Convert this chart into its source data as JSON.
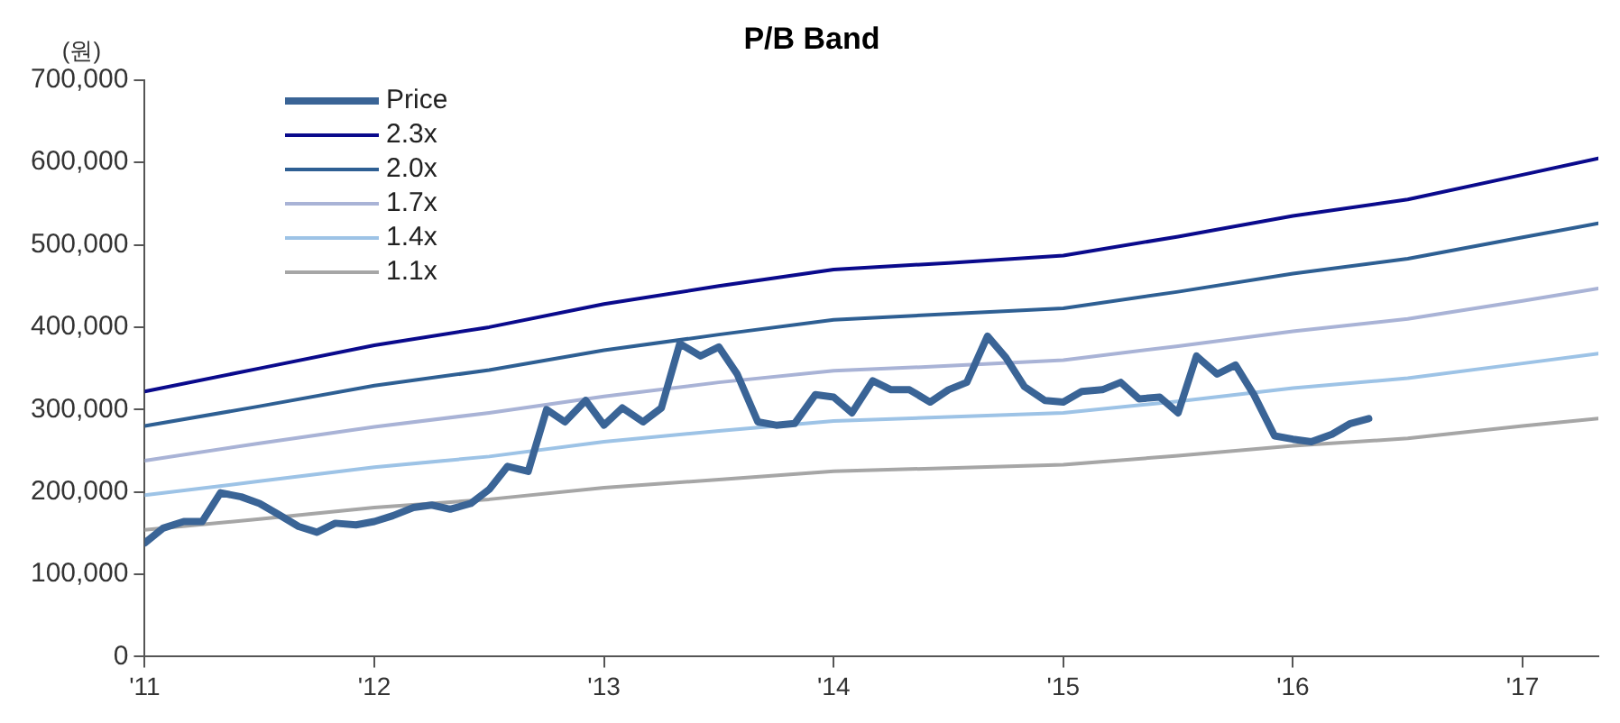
{
  "chart_data": {
    "type": "line",
    "title": "P/B Band",
    "ylabel": "(원)",
    "xlim": [
      2011,
      2017.33
    ],
    "xticks": [
      {
        "value": 2011,
        "label": "'11"
      },
      {
        "value": 2012,
        "label": "'12"
      },
      {
        "value": 2013,
        "label": "'13"
      },
      {
        "value": 2014,
        "label": "'14"
      },
      {
        "value": 2015,
        "label": "'15"
      },
      {
        "value": 2016,
        "label": "'16"
      },
      {
        "value": 2017,
        "label": "'17"
      }
    ],
    "ylim": [
      0,
      700000
    ],
    "yticks": [
      0,
      {
        "value": 100000,
        "label": "100,000"
      },
      {
        "value": 200000,
        "label": "200,000"
      },
      {
        "value": 300000,
        "label": "300,000"
      },
      {
        "value": 400000,
        "label": "400,000"
      },
      {
        "value": 500000,
        "label": "500,000"
      },
      {
        "value": 600000,
        "label": "600,000"
      },
      {
        "value": 700000,
        "label": "700,000"
      }
    ],
    "grid": false,
    "legend": "top left",
    "marker": "none",
    "line_style": "solid",
    "series": [
      {
        "name": "Price",
        "color": "#3a6496",
        "x": [
          2011,
          2011.08,
          2011.17,
          2011.25,
          2011.33,
          2011.42,
          2011.5,
          2011.58,
          2011.67,
          2011.75,
          2011.83,
          2011.92,
          2012,
          2012.08,
          2012.17,
          2012.25,
          2012.33,
          2012.42,
          2012.5,
          2012.58,
          2012.67,
          2012.75,
          2012.83,
          2012.92,
          2013,
          2013.08,
          2013.17,
          2013.25,
          2013.33,
          2013.42,
          2013.5,
          2013.58,
          2013.67,
          2013.75,
          2013.83,
          2013.92,
          2014,
          2014.08,
          2014.17,
          2014.25,
          2014.33,
          2014.42,
          2014.5,
          2014.58,
          2014.67,
          2014.75,
          2014.83,
          2014.92,
          2015,
          2015.08,
          2015.17,
          2015.25,
          2015.33,
          2015.42,
          2015.5,
          2015.58,
          2015.67,
          2015.75,
          2015.83,
          2015.92,
          2016,
          2016.08,
          2016.17,
          2016.25,
          2016.33
        ],
        "values": [
          138000,
          156000,
          164000,
          164000,
          199000,
          194000,
          186000,
          173000,
          158000,
          151000,
          162000,
          160000,
          164000,
          171000,
          181000,
          184000,
          179000,
          186000,
          203000,
          231000,
          225000,
          300000,
          285000,
          311000,
          281000,
          302000,
          285000,
          302000,
          380000,
          365000,
          376000,
          343000,
          285000,
          281000,
          283000,
          318000,
          315000,
          296000,
          335000,
          324000,
          324000,
          309000,
          324000,
          333000,
          389000,
          363000,
          328000,
          311000,
          309000,
          322000,
          324000,
          333000,
          313000,
          315000,
          296000,
          365000,
          343000,
          354000,
          318000,
          268000,
          264000,
          261000,
          270000,
          283000,
          289000
        ]
      },
      {
        "name": "2.3x",
        "color": "#0a0a8c",
        "x": [
          2011,
          2011.5,
          2012,
          2012.5,
          2013,
          2013.5,
          2014,
          2014.5,
          2015,
          2015.5,
          2016,
          2016.5,
          2017,
          2017.33
        ],
        "values": [
          322000,
          350000,
          378000,
          400000,
          428000,
          450000,
          470000,
          478000,
          487000,
          510000,
          535000,
          555000,
          585000,
          605000
        ]
      },
      {
        "name": "2.0x",
        "color": "#2e5f93",
        "x": [
          2011,
          2011.5,
          2012,
          2012.5,
          2013,
          2013.5,
          2014,
          2014.5,
          2015,
          2015.5,
          2016,
          2016.5,
          2017,
          2017.33
        ],
        "values": [
          280000,
          304000,
          329000,
          348000,
          372000,
          391000,
          409000,
          416000,
          423000,
          443000,
          465000,
          483000,
          509000,
          526000
        ]
      },
      {
        "name": "1.7x",
        "color": "#a9b3d6",
        "x": [
          2011,
          2011.5,
          2012,
          2012.5,
          2013,
          2013.5,
          2014,
          2014.5,
          2015,
          2015.5,
          2016,
          2016.5,
          2017,
          2017.33
        ],
        "values": [
          238000,
          259000,
          279000,
          296000,
          316000,
          333000,
          347000,
          353000,
          360000,
          377000,
          395000,
          410000,
          432000,
          447000
        ]
      },
      {
        "name": "1.4x",
        "color": "#9dc3e6",
        "x": [
          2011,
          2011.5,
          2012,
          2012.5,
          2013,
          2013.5,
          2014,
          2014.5,
          2015,
          2015.5,
          2016,
          2016.5,
          2017,
          2017.33
        ],
        "values": [
          196000,
          213000,
          230000,
          243000,
          261000,
          274000,
          286000,
          291000,
          296000,
          310000,
          326000,
          338000,
          356000,
          368000
        ]
      },
      {
        "name": "1.1x",
        "color": "#a6a6a6",
        "x": [
          2011,
          2011.5,
          2012,
          2012.5,
          2013,
          2013.5,
          2014,
          2014.5,
          2015,
          2015.5,
          2016,
          2016.5,
          2017,
          2017.33
        ],
        "values": [
          154000,
          167000,
          181000,
          191000,
          205000,
          215000,
          225000,
          229000,
          233000,
          244000,
          256000,
          265000,
          280000,
          289000
        ]
      }
    ]
  }
}
